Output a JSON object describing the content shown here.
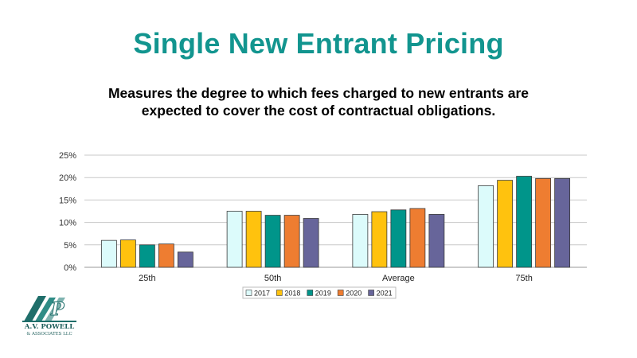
{
  "slide": {
    "title": "Single New Entrant Pricing",
    "subtitle_line1": "Measures the degree to which fees charged to new entrants are",
    "subtitle_line2": "expected to cover the cost of contractual obligations."
  },
  "logo": {
    "name": "A.V. POWELL",
    "sub": "& ASSOCIATES LLC",
    "icon": "avp-logo-icon"
  },
  "colors": {
    "title": "#12958f",
    "s2017": "#dcfbfb",
    "s2018": "#ffc20e",
    "s2019": "#00958a",
    "s2020": "#ee7d31",
    "s2021": "#67659a"
  },
  "chart_data": {
    "type": "bar",
    "categories": [
      "25th",
      "50th",
      "Average",
      "75th"
    ],
    "series": [
      {
        "name": "2017",
        "values": [
          0.06,
          0.125,
          0.118,
          0.182
        ]
      },
      {
        "name": "2018",
        "values": [
          0.061,
          0.125,
          0.124,
          0.194
        ]
      },
      {
        "name": "2019",
        "values": [
          0.05,
          0.116,
          0.128,
          0.203
        ]
      },
      {
        "name": "2020",
        "values": [
          0.052,
          0.116,
          0.131,
          0.198
        ]
      },
      {
        "name": "2021",
        "values": [
          0.034,
          0.109,
          0.118,
          0.198
        ]
      }
    ],
    "ylim": [
      0,
      0.25
    ],
    "yticks": [
      0,
      0.05,
      0.1,
      0.15,
      0.2,
      0.25
    ],
    "ytick_labels": [
      "0%",
      "5%",
      "10%",
      "15%",
      "20%",
      "25%"
    ],
    "grid": true,
    "legend": "bottom"
  }
}
